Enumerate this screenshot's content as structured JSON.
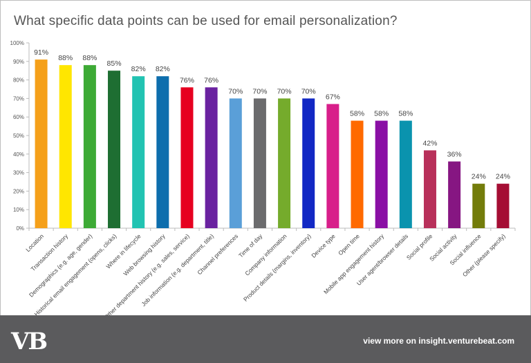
{
  "chart_data": {
    "type": "bar",
    "title": "What specific data points can be used for email personalization?",
    "categories": [
      "Location",
      "Transaction history",
      "Demographics (e.g. age, gender)",
      "Historical email engagement (opens, clicks)",
      "Where in lifecycle",
      "Web browsing history",
      "Other department history (e.g. sales, service)",
      "Job information (e.g. department, title)",
      "Channel preferences",
      "Time of day",
      "Company information",
      "Product details (margins, inventory)",
      "Device type",
      "Open time",
      "Mobile app engagement history",
      "User agent/browser details",
      "Social profile",
      "Social activity",
      "Social influence",
      "Other (please specify)"
    ],
    "values": [
      91,
      88,
      88,
      85,
      82,
      82,
      76,
      76,
      70,
      70,
      70,
      70,
      67,
      58,
      58,
      58,
      42,
      36,
      24,
      24
    ],
    "data_labels": [
      "91%",
      "88%",
      "88%",
      "85%",
      "82%",
      "82%",
      "76%",
      "76%",
      "70%",
      "70%",
      "70%",
      "70%",
      "67%",
      "58%",
      "58%",
      "58%",
      "42%",
      "36%",
      "24%",
      "24%"
    ],
    "colors": [
      "#f5a01a",
      "#ffe600",
      "#3daa35",
      "#1e6e32",
      "#22c3b2",
      "#0d6ead",
      "#e60020",
      "#6a22a0",
      "#5a9fd8",
      "#6b6b6d",
      "#75ab2c",
      "#1228c4",
      "#d81f8a",
      "#ff6a00",
      "#8a0fa5",
      "#0a93ae",
      "#b8305a",
      "#861682",
      "#737c0a",
      "#a50e34"
    ],
    "ylim": [
      0,
      100
    ],
    "yticks": [
      "0%",
      "10%",
      "20%",
      "30%",
      "40%",
      "50%",
      "60%",
      "70%",
      "80%",
      "90%",
      "100%"
    ],
    "grid": false,
    "legend": "none"
  },
  "footer": {
    "logo": "VB",
    "link": "view more on insight.venturebeat.com"
  }
}
